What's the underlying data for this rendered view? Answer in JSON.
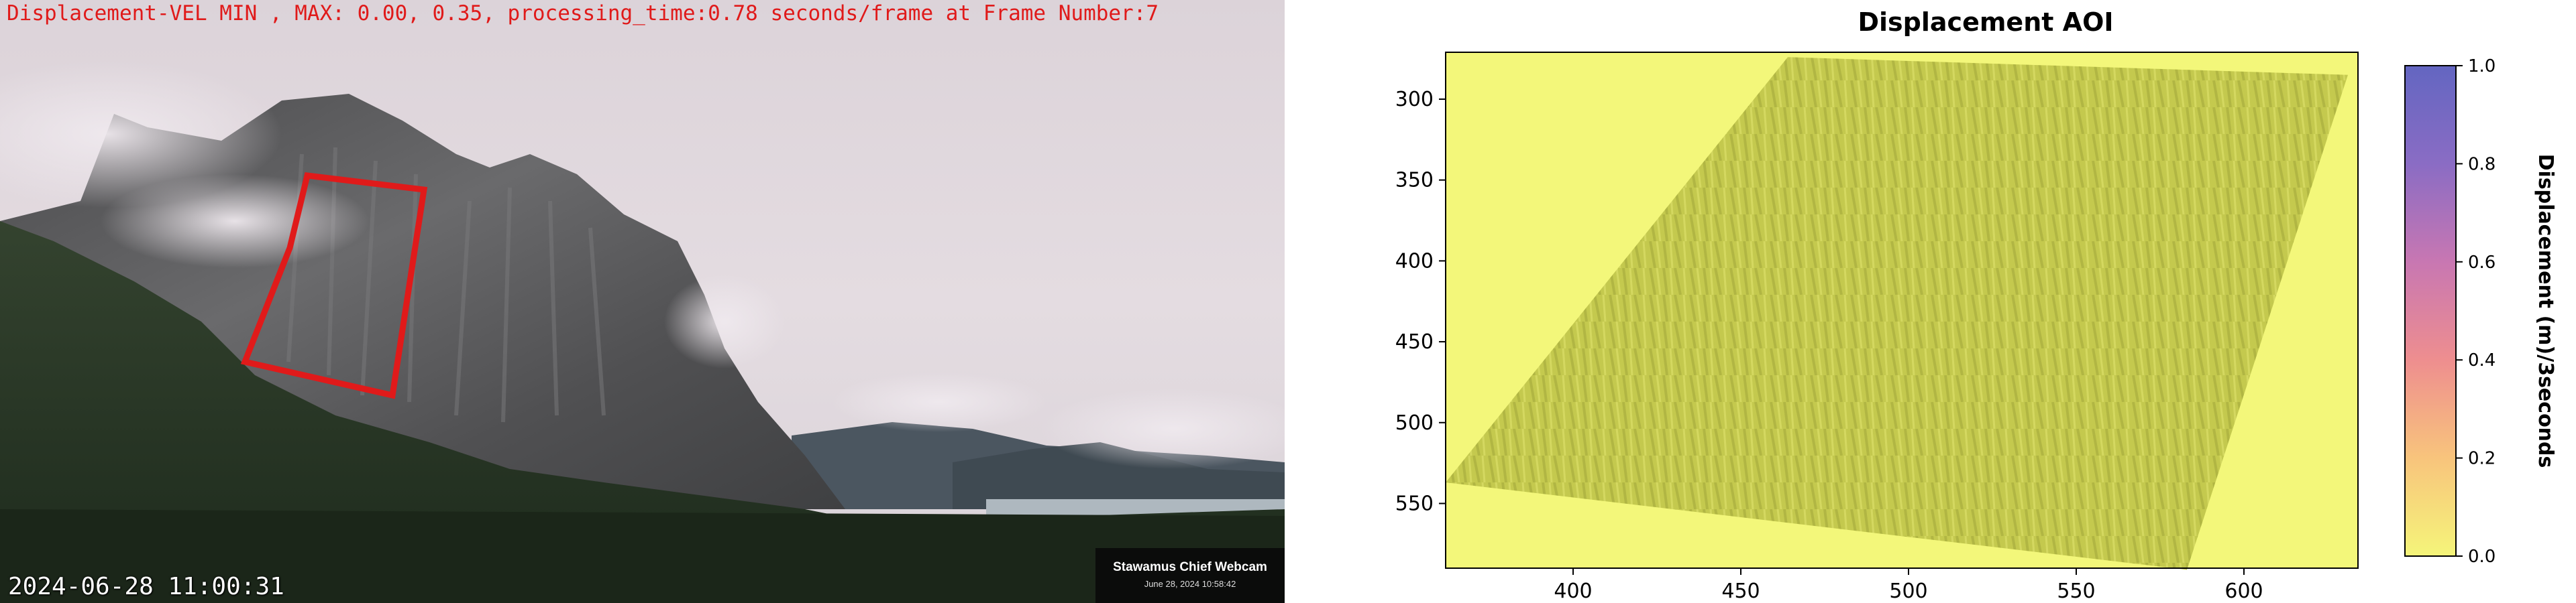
{
  "webcam": {
    "overlay_text": "Displacement-VEL MIN , MAX: 0.00, 0.35, processing_time:0.78 seconds/frame at Frame Number:7",
    "timestamp": "2024-06-28 11:00:31",
    "badge_name": "Stawamus Chief Webcam",
    "badge_date": "June 28, 2024 10:58:42",
    "aoi_color": "#e01a1a"
  },
  "chart_data": {
    "type": "heatmap",
    "title": "Displacement AOI",
    "xlabel": "",
    "ylabel": "",
    "xlim": [
      362,
      634
    ],
    "ylim": [
      590,
      271
    ],
    "xticks": [
      400,
      450,
      500,
      550,
      600
    ],
    "yticks": [
      300,
      350,
      400,
      450,
      500,
      550
    ],
    "xtick_labels": [
      "400",
      "450",
      "500",
      "550",
      "600"
    ],
    "ytick_labels": [
      "300",
      "350",
      "400",
      "450",
      "500",
      "550"
    ],
    "colorbar": {
      "label": "Displacement (m)/3seconds",
      "range": [
        0.0,
        1.0
      ],
      "ticks": [
        0.0,
        0.2,
        0.4,
        0.6,
        0.8,
        1.0
      ],
      "tick_labels": [
        "0.0",
        "0.2",
        "0.4",
        "0.6",
        "0.8",
        "1.0"
      ],
      "colors": [
        "#f5f57a",
        "#f8c47c",
        "#ee8e8f",
        "#c877b2",
        "#8a6cc4",
        "#6366c1"
      ]
    },
    "aoi_polygon": [
      {
        "x": 464,
        "y": 274
      },
      {
        "x": 631,
        "y": 285
      },
      {
        "x": 583,
        "y": 591
      },
      {
        "x": 362,
        "y": 537
      }
    ],
    "background_color": "#f3f77a",
    "aoi_fill_color": "#c4c94e",
    "grid": false
  }
}
